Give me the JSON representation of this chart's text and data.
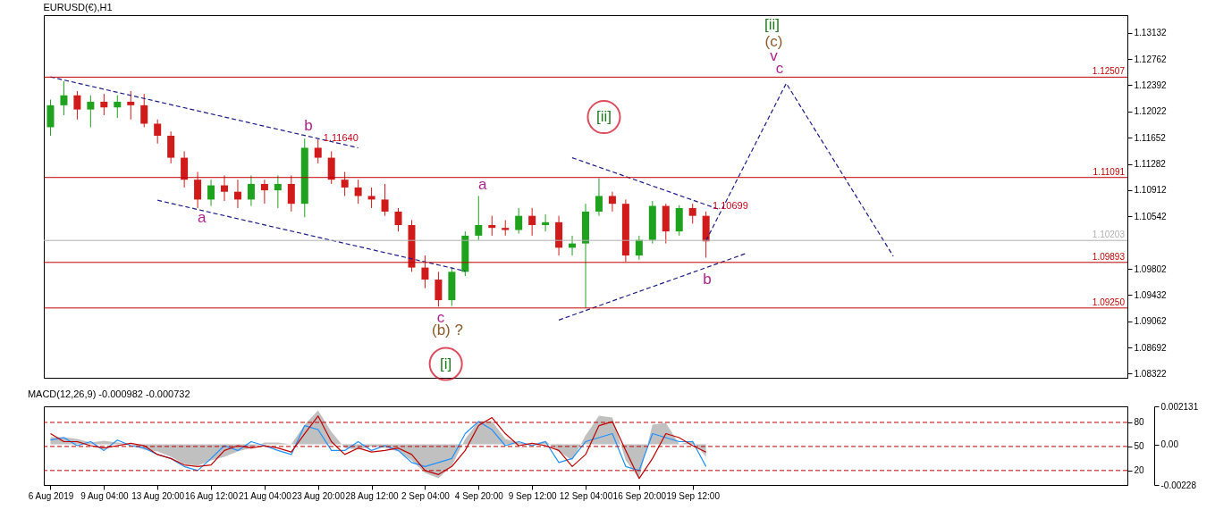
{
  "chart_data": [
    {
      "type": "candlestick",
      "title": "EURUSD(€),H1",
      "tick_labels": "y",
      "ohlc": [
        [
          1.118,
          1.1219,
          1.1168,
          1.1211
        ],
        [
          1.1211,
          1.1245,
          1.1197,
          1.1225
        ],
        [
          1.1225,
          1.1231,
          1.1191,
          1.1205
        ],
        [
          1.1205,
          1.1225,
          1.118,
          1.1216
        ],
        [
          1.1216,
          1.1227,
          1.1197,
          1.1208
        ],
        [
          1.1208,
          1.1225,
          1.1193,
          1.1216
        ],
        [
          1.1216,
          1.1231,
          1.1191,
          1.1211
        ],
        [
          1.1211,
          1.1227,
          1.118,
          1.1185
        ],
        [
          1.1185,
          1.1191,
          1.1157,
          1.1168
        ],
        [
          1.1168,
          1.1174,
          1.1129,
          1.1137
        ],
        [
          1.1137,
          1.1146,
          1.1095,
          1.1106
        ],
        [
          1.1106,
          1.1117,
          1.1066,
          1.1078
        ],
        [
          1.1078,
          1.1106,
          1.1069,
          1.1098
        ],
        [
          1.1098,
          1.1112,
          1.1076,
          1.1089
        ],
        [
          1.1089,
          1.1106,
          1.1066,
          1.1078
        ],
        [
          1.1078,
          1.1112,
          1.1069,
          1.11
        ],
        [
          1.11,
          1.1106,
          1.1072,
          1.1091
        ],
        [
          1.1091,
          1.1112,
          1.1066,
          1.11
        ],
        [
          1.11,
          1.1112,
          1.1061,
          1.1072
        ],
        [
          1.1072,
          1.1164,
          1.1053,
          1.1151
        ],
        [
          1.1151,
          1.1163,
          1.1129,
          1.1137
        ],
        [
          1.1137,
          1.1146,
          1.11,
          1.1106
        ],
        [
          1.1106,
          1.1117,
          1.1083,
          1.1095
        ],
        [
          1.1095,
          1.1106,
          1.1072,
          1.1083
        ],
        [
          1.1083,
          1.1095,
          1.1066,
          1.1078
        ],
        [
          1.1078,
          1.11,
          1.1055,
          1.1061
        ],
        [
          1.1061,
          1.1066,
          1.1033,
          1.1042
        ],
        [
          1.1042,
          1.1049,
          1.0976,
          1.0982
        ],
        [
          1.0982,
          1.0999,
          1.0953,
          1.0965
        ],
        [
          1.0965,
          1.0976,
          1.0927,
          1.0936
        ],
        [
          1.0936,
          1.0982,
          1.0928,
          1.0976
        ],
        [
          1.0976,
          1.1033,
          1.097,
          1.1027
        ],
        [
          1.1027,
          1.1083,
          1.1021,
          1.1042
        ],
        [
          1.1042,
          1.1055,
          1.1027,
          1.1038
        ],
        [
          1.1038,
          1.1049,
          1.1027,
          1.1035
        ],
        [
          1.1035,
          1.1066,
          1.103,
          1.1055
        ],
        [
          1.1055,
          1.1066,
          1.1027,
          1.1042
        ],
        [
          1.1042,
          1.1057,
          1.1033,
          1.1046
        ],
        [
          1.1046,
          1.1055,
          1.0999,
          1.101
        ],
        [
          1.101,
          1.1027,
          1.0999,
          1.1016
        ],
        [
          1.1016,
          1.1072,
          1.0925,
          1.1061
        ],
        [
          1.1061,
          1.1108,
          1.1055,
          1.1083
        ],
        [
          1.1083,
          1.1089,
          1.1061,
          1.1072
        ],
        [
          1.1072,
          1.1078,
          1.099,
          1.0999
        ],
        [
          1.0999,
          1.1027,
          1.0993,
          1.1021
        ],
        [
          1.1021,
          1.1076,
          1.1016,
          1.1069
        ],
        [
          1.1069,
          1.1072,
          1.1016,
          1.1033
        ],
        [
          1.1033,
          1.107,
          1.1027,
          1.1066
        ],
        [
          1.1066,
          1.1072,
          1.1044,
          1.1055
        ],
        [
          1.1055,
          1.1061,
          1.0996,
          1.1019
        ],
        null,
        null,
        null,
        null,
        null,
        null,
        null,
        null,
        null,
        null,
        null,
        null,
        null,
        null,
        null,
        null,
        null,
        null,
        null,
        null,
        null,
        null,
        null,
        null,
        null,
        null,
        null,
        null,
        null,
        null,
        null
      ],
      "series": [
        {
          "type": "line",
          "color": "#1c1c8a",
          "line_style": "dashed",
          "values": [
            1.1251,
            null,
            null,
            null,
            null,
            null,
            null,
            null,
            null,
            null,
            null,
            null,
            null,
            null,
            null,
            null,
            null,
            null,
            null,
            null,
            null,
            null,
            null,
            1.1151,
            null,
            null,
            null,
            null,
            null,
            null,
            null,
            null,
            null,
            null,
            null,
            null,
            null,
            null,
            null,
            null,
            null,
            null,
            null,
            null,
            null,
            null,
            null,
            null,
            null,
            null,
            null,
            null,
            null,
            null,
            null,
            null,
            null,
            null,
            null,
            null,
            null,
            null,
            null,
            null,
            null,
            null,
            null,
            null,
            null,
            null,
            null,
            null,
            null,
            null,
            null,
            null,
            null,
            null,
            null,
            null,
            null
          ]
        },
        {
          "type": "line",
          "color": "#1c1c8a",
          "line_style": "dashed",
          "values": [
            null,
            null,
            null,
            null,
            null,
            null,
            null,
            null,
            1.1077,
            null,
            null,
            null,
            null,
            null,
            null,
            null,
            null,
            null,
            null,
            null,
            null,
            null,
            null,
            null,
            null,
            null,
            null,
            null,
            null,
            null,
            null,
            1.0977,
            null,
            null,
            null,
            null,
            null,
            null,
            null,
            null,
            null,
            null,
            null,
            null,
            null,
            null,
            null,
            null,
            null,
            null,
            null,
            null,
            null,
            null,
            null,
            null,
            null,
            null,
            null,
            null,
            null,
            null,
            null,
            null,
            null,
            null,
            null,
            null,
            null,
            null,
            null,
            null,
            null,
            null,
            null,
            null,
            null,
            null,
            null,
            null,
            null
          ]
        },
        {
          "type": "line",
          "color": "#1c1c8a",
          "line_style": "dashed",
          "values": [
            null,
            null,
            null,
            null,
            null,
            null,
            null,
            null,
            null,
            null,
            null,
            null,
            null,
            null,
            null,
            null,
            null,
            null,
            null,
            null,
            null,
            null,
            null,
            null,
            null,
            null,
            null,
            null,
            null,
            null,
            null,
            null,
            null,
            null,
            null,
            null,
            null,
            null,
            null,
            1.1137,
            null,
            null,
            null,
            null,
            null,
            null,
            null,
            null,
            null,
            null,
            1.1064,
            null,
            null,
            null,
            null,
            null,
            null,
            null,
            null,
            null,
            null,
            null,
            null,
            null,
            null,
            null,
            null,
            null,
            null,
            null,
            null,
            null,
            null,
            null,
            null,
            null,
            null,
            null,
            null,
            null,
            null
          ]
        },
        {
          "type": "line",
          "color": "#1c1c8a",
          "line_style": "dashed",
          "values": [
            null,
            null,
            null,
            null,
            null,
            null,
            null,
            null,
            null,
            null,
            null,
            null,
            null,
            null,
            null,
            null,
            null,
            null,
            null,
            null,
            null,
            null,
            null,
            null,
            null,
            null,
            null,
            null,
            null,
            null,
            null,
            null,
            null,
            null,
            null,
            null,
            null,
            null,
            1.0908,
            null,
            null,
            null,
            null,
            null,
            null,
            null,
            null,
            null,
            null,
            null,
            null,
            null,
            1.1002,
            null,
            null,
            null,
            null,
            null,
            null,
            null,
            null,
            null,
            null,
            null,
            null,
            null,
            null,
            null,
            null,
            null,
            null,
            null,
            null,
            null,
            null,
            null,
            null,
            null,
            null,
            null,
            null
          ]
        },
        {
          "type": "line",
          "color": "#1c1c8a",
          "line_style": "dashed",
          "values": [
            null,
            null,
            null,
            null,
            null,
            null,
            null,
            null,
            null,
            null,
            null,
            null,
            null,
            null,
            null,
            null,
            null,
            null,
            null,
            null,
            null,
            null,
            null,
            null,
            null,
            null,
            null,
            null,
            null,
            null,
            null,
            null,
            null,
            null,
            null,
            null,
            null,
            null,
            null,
            null,
            null,
            null,
            null,
            null,
            null,
            null,
            null,
            null,
            null,
            1.102,
            null,
            null,
            null,
            null,
            null,
            1.1242,
            null,
            null,
            null,
            null,
            null,
            null,
            null,
            1.0998,
            null,
            null,
            null,
            null,
            null,
            null,
            null,
            null,
            null,
            null,
            null,
            null,
            null,
            null,
            null,
            null,
            null
          ]
        }
      ],
      "ylim": [
        1.08265,
        1.13381
      ],
      "yticks": [
        1.13132,
        1.12762,
        1.12392,
        1.12022,
        1.11652,
        1.11282,
        1.10912,
        1.10542,
        1.09802,
        1.09432,
        1.09062,
        1.08692,
        1.08322
      ],
      "ref_lines": [
        {
          "axis": "y",
          "value": 1.12507,
          "label": "1.12507",
          "color": "#c00000"
        },
        {
          "axis": "y",
          "value": 1.11091,
          "label": "1.11091",
          "color": "#c00000"
        },
        {
          "axis": "y",
          "value": 1.10203,
          "label": "1.10203",
          "color": "#b0b0b0"
        },
        {
          "axis": "y",
          "value": 1.09893,
          "label": "1.09893",
          "color": "#c00000"
        },
        {
          "axis": "y",
          "value": 1.0925,
          "label": "1.09250",
          "color": "#c00000"
        }
      ],
      "annotations": [
        "b",
        "a",
        "c",
        "(b) ?",
        "[i]",
        "a",
        "[ii]",
        "b",
        "[ii]",
        "(c)",
        "v",
        "c",
        "1.11640",
        "1.10699"
      ]
    },
    {
      "type": "area",
      "title": "MACD(12,26,9) -0.000982 -0.000732",
      "categories": [
        "6 Aug 2019",
        null,
        null,
        null,
        "9 Aug 04:00",
        null,
        null,
        null,
        "13 Aug 20:00",
        null,
        null,
        null,
        "16 Aug 12:00",
        null,
        null,
        null,
        "21 Aug 04:00",
        null,
        null,
        null,
        "23 Aug 20:00",
        null,
        null,
        null,
        "28 Aug 12:00",
        null,
        null,
        null,
        "2 Sep 04:00",
        null,
        null,
        null,
        "4 Sep 20:00",
        null,
        null,
        null,
        "9 Sep 12:00",
        null,
        null,
        null,
        "12 Sep 04:00",
        null,
        null,
        null,
        "16 Sep 20:00",
        null,
        null,
        null,
        "19 Sep 12:00",
        null,
        null,
        null,
        null,
        null,
        null,
        null,
        null,
        null,
        null,
        null,
        null,
        null,
        null,
        null,
        null,
        null,
        null,
        null,
        null,
        null,
        null,
        null,
        null,
        null,
        null,
        null,
        null,
        null,
        null,
        null,
        null
      ],
      "series": [
        {
          "color": "#c0c0c0",
          "values": [
            0.0004,
            0.0004,
            0.0003,
            0.0001,
            0.0002,
            0.0001,
            0,
            -0.0003,
            -0.0004,
            -0.0007,
            -0.0011,
            -0.0012,
            -0.0009,
            -0.0007,
            -0.0004,
            -0.0002,
            0.0001,
            0.0001,
            0,
            0.0011,
            0.0019,
            0.0007,
            -0.0002,
            -0.0003,
            -0.0001,
            -0.0002,
            -0.0004,
            -0.0009,
            -0.0016,
            -0.0019,
            -0.0012,
            0.0003,
            0.0013,
            0.0013,
            0.0003,
            0.0001,
            0,
            0.0002,
            -0.0004,
            -0.0009,
            0.0005,
            0.0016,
            0.0015,
            -0.0009,
            -0.0019,
            0.0011,
            0.0012,
            0,
            0.0002,
            -0.0007,
            null,
            null,
            null,
            null,
            null,
            null,
            null,
            null,
            null,
            null,
            null,
            null,
            null,
            null,
            null,
            null,
            null,
            null,
            null,
            null,
            null,
            null,
            null,
            null,
            null,
            null,
            null,
            null,
            null,
            null,
            null
          ]
        },
        {
          "type": "line",
          "axis": "y2",
          "color": "#1e90ff",
          "values": [
            58,
            61,
            51,
            56,
            45,
            58,
            51,
            48,
            40,
            35,
            25,
            20,
            35,
            51,
            45,
            56,
            51,
            45,
            40,
            76,
            71,
            45,
            45,
            56,
            45,
            51,
            45,
            30,
            25,
            30,
            35,
            66,
            81,
            71,
            51,
            56,
            51,
            56,
            30,
            35,
            56,
            61,
            66,
            25,
            20,
            66,
            61,
            56,
            56,
            25,
            null,
            null,
            null,
            null,
            null,
            null,
            null,
            null,
            null,
            null,
            null,
            null,
            null,
            null,
            null,
            null,
            null,
            null,
            null,
            null,
            null,
            null,
            null,
            null,
            null,
            null,
            null,
            null,
            null,
            null,
            null
          ]
        },
        {
          "type": "line",
          "axis": "y2",
          "color": "#c00000",
          "values": [
            66,
            56,
            56,
            51,
            48,
            51,
            54,
            51,
            40,
            35,
            27,
            25,
            27,
            45,
            51,
            48,
            51,
            48,
            43,
            66,
            88,
            56,
            40,
            48,
            43,
            45,
            48,
            40,
            20,
            15,
            25,
            45,
            76,
            86,
            66,
            51,
            54,
            51,
            45,
            25,
            40,
            76,
            81,
            45,
            10,
            35,
            66,
            61,
            51,
            43,
            null,
            null,
            null,
            null,
            null,
            null,
            null,
            null,
            null,
            null,
            null,
            null,
            null,
            null,
            null,
            null,
            null,
            null,
            null,
            null,
            null,
            null,
            null,
            null,
            null,
            null,
            null,
            null,
            null,
            null,
            null
          ]
        }
      ],
      "ylim": [
        -0.00228,
        0.002131
      ],
      "yticks": [
        0.002131,
        {
          "value": 0,
          "label": "0.00"
        },
        -0.00228
      ],
      "y2lim": [
        2,
        100
      ],
      "y2ticks": [
        80,
        50,
        20
      ],
      "ref_lines": [
        {
          "axis": "y2",
          "value": 80,
          "color": "#c00000",
          "line_style": "dashed"
        },
        {
          "axis": "y2",
          "value": 50,
          "color": "#c00000",
          "line_style": "dashed"
        },
        {
          "axis": "y2",
          "value": 20,
          "color": "#c00000",
          "line_style": "dashed"
        }
      ]
    }
  ]
}
